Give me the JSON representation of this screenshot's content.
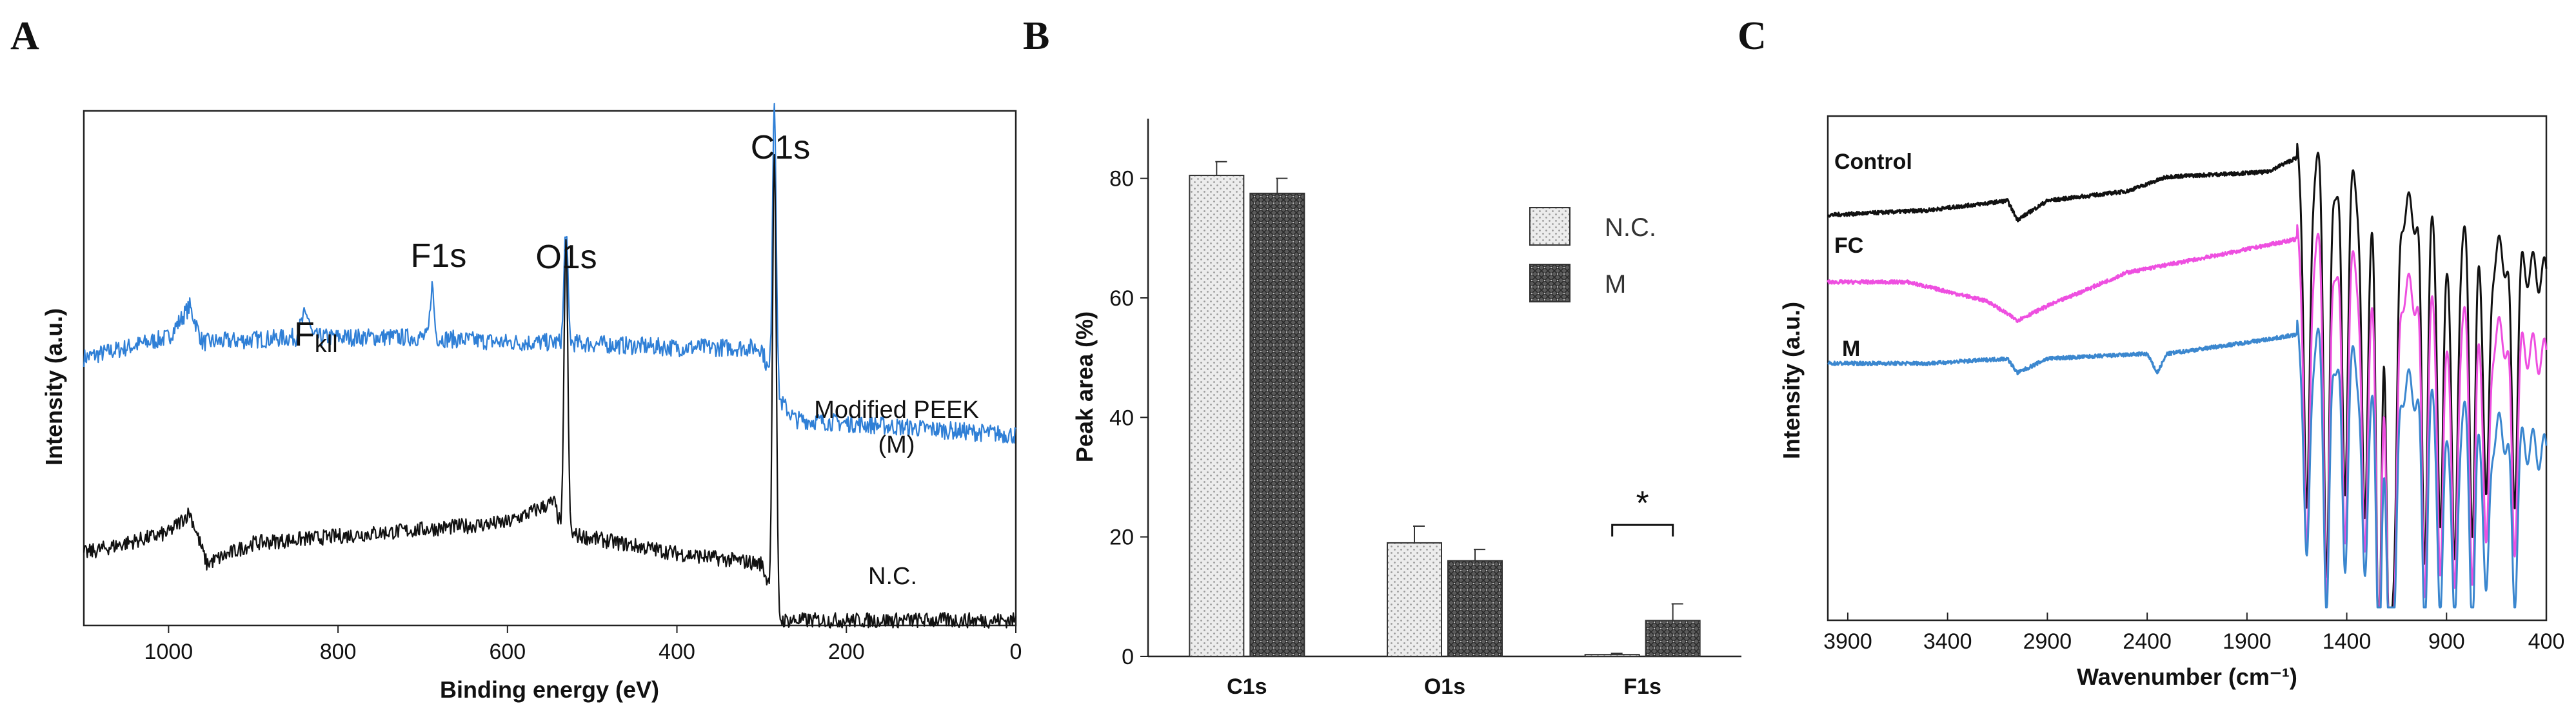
{
  "panels": {
    "a": "A",
    "b": "B",
    "c": "C"
  },
  "chart_data": [
    {
      "type": "line",
      "panel": "A",
      "title": "",
      "xlabel": "Binding energy (eV)",
      "ylabel": "Intensity (a.u.)",
      "xlim": [
        1100,
        0
      ],
      "x_reversed": true,
      "xticks": [
        1000,
        800,
        600,
        400,
        200,
        0
      ],
      "yticks": [],
      "series": [
        {
          "name": "Modified PEEK (M)",
          "label_line1": "Modified PEEK",
          "label_line2": "(M)",
          "color": "#2f7fd6",
          "baseline_points": [
            [
              1100,
              0.52
            ],
            [
              1000,
              0.56
            ],
            [
              975,
              0.62
            ],
            [
              960,
              0.55
            ],
            [
              850,
              0.56
            ],
            [
              840,
              0.6
            ],
            [
              830,
              0.56
            ],
            [
              700,
              0.56
            ],
            [
              600,
              0.55
            ],
            [
              540,
              0.55
            ],
            [
              400,
              0.54
            ],
            [
              300,
              0.54
            ],
            [
              285,
              0.45
            ],
            [
              260,
              0.4
            ],
            [
              0,
              0.37
            ]
          ],
          "peaks": [
            [
              285,
              1.02
            ],
            [
              531,
              0.77
            ],
            [
              689,
              0.66
            ],
            [
              835,
              0.6
            ]
          ]
        },
        {
          "name": "N.C.",
          "label_line1": "N.C.",
          "color": "#111111",
          "baseline_points": [
            [
              1100,
              0.14
            ],
            [
              1000,
              0.18
            ],
            [
              975,
              0.22
            ],
            [
              955,
              0.12
            ],
            [
              900,
              0.16
            ],
            [
              600,
              0.2
            ],
            [
              545,
              0.24
            ],
            [
              535,
              0.18
            ],
            [
              400,
              0.14
            ],
            [
              300,
              0.12
            ],
            [
              288,
              0.06
            ],
            [
              280,
              0.01
            ],
            [
              0,
              0.01
            ]
          ],
          "peaks": [
            [
              285,
              0.92
            ],
            [
              531,
              0.75
            ]
          ]
        }
      ],
      "annotations": {
        "c1s": "C1s",
        "o1s": "O1s",
        "f1s": "F1s",
        "fkll_base": "F",
        "fkll_sub": "kll"
      }
    },
    {
      "type": "bar",
      "panel": "B",
      "title": "",
      "xlabel": "",
      "ylabel": "Peak area (%)",
      "ylim": [
        0,
        90
      ],
      "yticks": [
        0,
        20,
        40,
        60,
        80
      ],
      "categories": [
        "C1s",
        "O1s",
        "F1s"
      ],
      "series": [
        {
          "name": "N.C.",
          "values": [
            80.5,
            19.0,
            0.3
          ],
          "errors": [
            2.3,
            2.8,
            0.2
          ],
          "pattern": "light"
        },
        {
          "name": "M",
          "values": [
            77.5,
            16.0,
            6.0
          ],
          "errors": [
            2.5,
            1.9,
            2.8
          ],
          "pattern": "dark"
        }
      ],
      "significance": {
        "category": "F1s",
        "label": "*"
      }
    },
    {
      "type": "line",
      "panel": "C",
      "title": "",
      "xlabel": "Wavenumber (cm⁻¹)",
      "ylabel": "Intensity (a.u.)",
      "xlim": [
        4000,
        400
      ],
      "x_reversed": true,
      "xticks": [
        3900,
        3400,
        2900,
        2400,
        1900,
        1400,
        900,
        400
      ],
      "yticks": [],
      "series": [
        {
          "name": "Control",
          "color": "#111111",
          "baseline_points": [
            [
              4000,
              0.82
            ],
            [
              3500,
              0.83
            ],
            [
              3100,
              0.85
            ],
            [
              3050,
              0.81
            ],
            [
              2900,
              0.85
            ],
            [
              2500,
              0.87
            ],
            [
              2300,
              0.9
            ],
            [
              1800,
              0.91
            ],
            [
              1650,
              0.94
            ]
          ],
          "dips": [
            [
              1600,
              0.18
            ],
            [
              1500,
              0.1
            ],
            [
              1410,
              0.3
            ],
            [
              1310,
              0.22
            ],
            [
              1240,
              0.02
            ],
            [
              1190,
              0.1
            ],
            [
              1160,
              0.3
            ],
            [
              1010,
              0.25
            ],
            [
              930,
              0.3
            ],
            [
              860,
              0.22
            ],
            [
              770,
              0.35
            ],
            [
              700,
              0.4
            ],
            [
              560,
              0.45
            ]
          ]
        },
        {
          "name": "FC",
          "color": "#ee4fe0",
          "baseline_points": [
            [
              4000,
              0.68
            ],
            [
              3600,
              0.68
            ],
            [
              3200,
              0.64
            ],
            [
              3050,
              0.6
            ],
            [
              2900,
              0.63
            ],
            [
              2500,
              0.7
            ],
            [
              2000,
              0.74
            ],
            [
              1650,
              0.77
            ]
          ],
          "dips": [
            [
              1600,
              0.1
            ],
            [
              1500,
              0.05
            ],
            [
              1410,
              0.2
            ],
            [
              1310,
              0.15
            ],
            [
              1240,
              0.02
            ],
            [
              1190,
              0.08
            ],
            [
              1160,
              0.2
            ],
            [
              1010,
              0.18
            ],
            [
              930,
              0.2
            ],
            [
              860,
              0.16
            ],
            [
              770,
              0.25
            ],
            [
              700,
              0.3
            ],
            [
              560,
              0.35
            ]
          ]
        },
        {
          "name": "M",
          "color": "#3b87cf",
          "baseline_points": [
            [
              4000,
              0.51
            ],
            [
              3500,
              0.51
            ],
            [
              3100,
              0.52
            ],
            [
              3050,
              0.49
            ],
            [
              2900,
              0.52
            ],
            [
              2400,
              0.53
            ],
            [
              2350,
              0.49
            ],
            [
              2300,
              0.53
            ],
            [
              1800,
              0.56
            ],
            [
              1650,
              0.57
            ]
          ],
          "dips": [
            [
              1600,
              0.08
            ],
            [
              1500,
              0.03
            ],
            [
              1410,
              0.14
            ],
            [
              1310,
              0.1
            ],
            [
              1240,
              0.0
            ],
            [
              1190,
              0.05
            ],
            [
              1160,
              0.14
            ],
            [
              1010,
              0.12
            ],
            [
              930,
              0.12
            ],
            [
              860,
              0.1
            ],
            [
              770,
              0.16
            ],
            [
              700,
              0.2
            ],
            [
              560,
              0.24
            ]
          ]
        }
      ]
    }
  ]
}
